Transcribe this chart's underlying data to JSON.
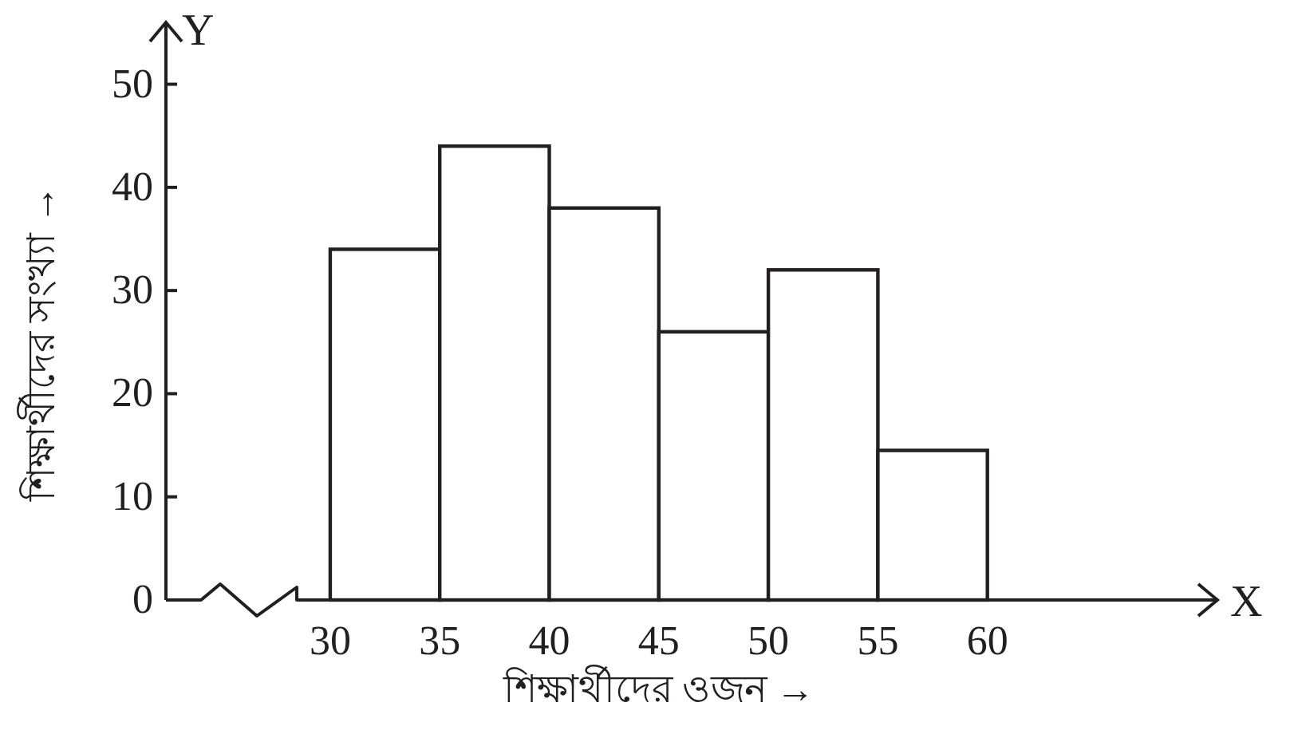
{
  "chart_data": {
    "type": "histogram",
    "xlabel": "শিক্ষার্থীদের ওজন →",
    "ylabel": "শিক্ষার্থীদের সংখ্যা →",
    "bins": [
      30,
      35,
      40,
      45,
      50,
      55,
      60
    ],
    "values": [
      34,
      44,
      38,
      26,
      32,
      14.5
    ],
    "color": "#ffffff",
    "xlim": [
      22.5,
      70.5
    ],
    "ylim": [
      0,
      56
    ],
    "xticks": [
      30,
      35,
      40,
      45,
      50,
      55,
      60
    ],
    "yticks": [
      0,
      10,
      20,
      30,
      40,
      50
    ],
    "annotations": [
      "X",
      "Y"
    ],
    "grid": false
  }
}
